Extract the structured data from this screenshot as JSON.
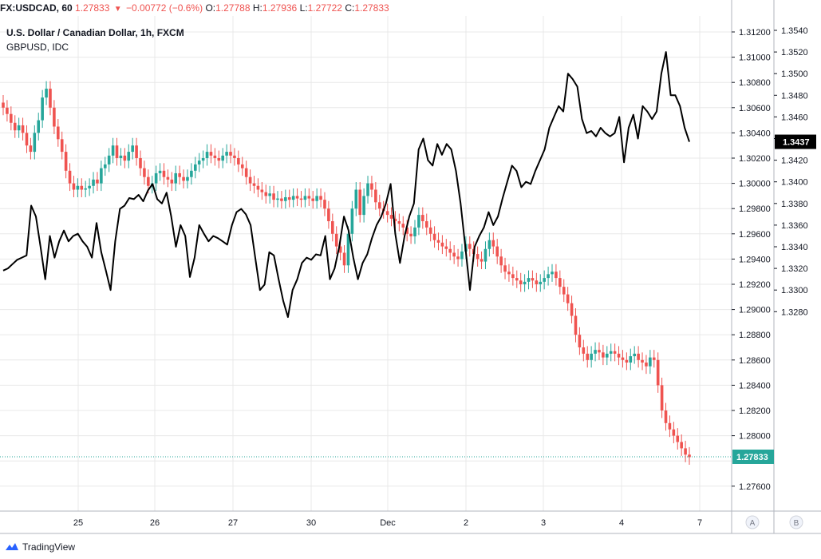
{
  "header": {
    "symbol": "FX:USDCAD, 60",
    "last": "1.27833",
    "change": "−0.00772 (−0.6%)",
    "o_label": "O:",
    "o_val": "1.27788",
    "h_label": "H:",
    "h_val": "1.27936",
    "l_label": "L:",
    "l_val": "1.27722",
    "c_label": "C:",
    "c_val": "1.27833"
  },
  "titles": {
    "main": "U.S. Dollar / Canadian Dollar, 1h, FXCM",
    "overlay": "GBPUSD, IDC"
  },
  "footer": {
    "brand": "TradingView"
  },
  "colors": {
    "up": "#26a69a",
    "down": "#ef5350",
    "line": "#000000",
    "grid": "#e8e8e8"
  },
  "chart_data": {
    "type": "line",
    "x_ticks": [
      "25",
      "26",
      "27",
      "30",
      "Dec",
      "2",
      "3",
      "4",
      "7"
    ],
    "scale_a": {
      "labels": [
        "A"
      ],
      "ticks": [
        1.312,
        1.31,
        1.308,
        1.306,
        1.304,
        1.302,
        1.3,
        1.298,
        1.296,
        1.294,
        1.292,
        1.29,
        1.288,
        1.286,
        1.284,
        1.282,
        1.28,
        1.278,
        1.276
      ],
      "tick_labels": [
        "1.31200",
        "1.31000",
        "1.30800",
        "1.30600",
        "1.30400",
        "1.30200",
        "1.30000",
        "1.29800",
        "1.29600",
        "1.29400",
        "1.29200",
        "1.29000",
        "1.28800",
        "1.28600",
        "1.28400",
        "1.28200",
        "1.28000",
        "",
        "1.27600"
      ],
      "last_price": "1.27833",
      "last_value": 1.27833
    },
    "scale_b": {
      "labels": [
        "B"
      ],
      "ticks": [
        1.354,
        1.352,
        1.35,
        1.348,
        1.346,
        1.344,
        1.342,
        1.34,
        1.338,
        1.336,
        1.334,
        1.332,
        1.33,
        1.328
      ],
      "tick_labels": [
        "1.3540",
        "1.3520",
        "1.3500",
        "1.3480",
        "1.3460",
        "1.3440",
        "1.3420",
        "1.3400",
        "1.3380",
        "1.3360",
        "1.3340",
        "1.3320",
        "1.3300",
        "1.3280"
      ],
      "last_price": "1.3437",
      "last_value": 1.3437
    },
    "series": [
      {
        "kind": "candles",
        "closes": [
          1.306,
          1.3055,
          1.3048,
          1.3042,
          1.3046,
          1.304,
          1.303,
          1.3025,
          1.304,
          1.305,
          1.3068,
          1.3075,
          1.306,
          1.3045,
          1.3035,
          1.3025,
          1.301,
          1.3,
          1.2995,
          1.2998,
          1.2995,
          1.2996,
          1.2998,
          1.3003,
          1.3,
          1.3012,
          1.3015,
          1.3022,
          1.303,
          1.302,
          1.3022,
          1.3018,
          1.3025,
          1.303,
          1.302,
          1.3012,
          1.3005,
          1.2998,
          1.3,
          1.3008,
          1.301,
          1.3005,
          1.3003,
          1.3,
          1.3008,
          1.3005,
          1.3002,
          1.3005,
          1.301,
          1.3015,
          1.3018,
          1.302,
          1.3025,
          1.3022,
          1.302,
          1.3018,
          1.3022,
          1.3025,
          1.3022,
          1.302,
          1.3015,
          1.3012,
          1.3005,
          1.3,
          1.2998,
          1.2995,
          1.2993,
          1.299,
          1.2992,
          1.2987,
          1.2988,
          1.2986,
          1.2989,
          1.2987,
          1.299,
          1.2988,
          1.2987,
          1.299,
          1.2988,
          1.2986,
          1.299,
          1.2987,
          1.298,
          1.297,
          1.296,
          1.295,
          1.2945,
          1.2935,
          1.296,
          1.298,
          1.2995,
          1.2975,
          1.299,
          1.3,
          1.2995,
          1.2985,
          1.298,
          1.2978,
          1.2975,
          1.2972,
          1.297,
          1.2968,
          1.2965,
          1.296,
          1.2958,
          1.2965,
          1.2975,
          1.297,
          1.2965,
          1.296,
          1.2955,
          1.2953,
          1.295,
          1.2948,
          1.2945,
          1.2942,
          1.294,
          1.2946,
          1.2952,
          1.2948,
          1.2944,
          1.294,
          1.2938,
          1.2948,
          1.2955,
          1.295,
          1.2942,
          1.2935,
          1.293,
          1.2928,
          1.2925,
          1.2923,
          1.292,
          1.2922,
          1.2925,
          1.2923,
          1.292,
          1.2922,
          1.2925,
          1.2928,
          1.293,
          1.2925,
          1.2918,
          1.2912,
          1.2905,
          1.2895,
          1.288,
          1.287,
          1.2865,
          1.286,
          1.2865,
          1.2868,
          1.2866,
          1.2862,
          1.2865,
          1.2867,
          1.2865,
          1.2862,
          1.286,
          1.2858,
          1.2863,
          1.2865,
          1.286,
          1.2858,
          1.2855,
          1.2862,
          1.286,
          1.284,
          1.282,
          1.281,
          1.2805,
          1.28,
          1.2795,
          1.279,
          1.2785,
          1.2783
        ]
      },
      {
        "kind": "line",
        "name": "GBPUSD, IDC",
        "values": [
          1.3318,
          1.332,
          1.3324,
          1.3328,
          1.333,
          1.3332,
          1.3378,
          1.3368,
          1.334,
          1.331,
          1.335,
          1.333,
          1.3345,
          1.3355,
          1.3345,
          1.335,
          1.3352,
          1.3345,
          1.334,
          1.333,
          1.3362,
          1.3335,
          1.3318,
          1.33,
          1.3345,
          1.3375,
          1.3378,
          1.3385,
          1.3384,
          1.3388,
          1.3382,
          1.3392,
          1.3398,
          1.3384,
          1.338,
          1.339,
          1.3368,
          1.334,
          1.336,
          1.335,
          1.3312,
          1.333,
          1.336,
          1.3352,
          1.3345,
          1.335,
          1.3348,
          1.3345,
          1.3342,
          1.336,
          1.3372,
          1.3375,
          1.337,
          1.336,
          1.333,
          1.33,
          1.3305,
          1.3335,
          1.3332,
          1.331,
          1.329,
          1.3275,
          1.33,
          1.331,
          1.3325,
          1.333,
          1.3328,
          1.3333,
          1.3332,
          1.335,
          1.331,
          1.332,
          1.334,
          1.3368,
          1.3355,
          1.333,
          1.331,
          1.3325,
          1.3333,
          1.3348,
          1.336,
          1.3368,
          1.338,
          1.3398,
          1.3352,
          1.3325,
          1.335,
          1.3368,
          1.338,
          1.343,
          1.344,
          1.342,
          1.3415,
          1.3435,
          1.3425,
          1.3435,
          1.343,
          1.341,
          1.338,
          1.334,
          1.33,
          1.334,
          1.335,
          1.3358,
          1.3372,
          1.336,
          1.3368,
          1.3385,
          1.34,
          1.3415,
          1.341,
          1.3395,
          1.34,
          1.3398,
          1.341,
          1.342,
          1.343,
          1.345,
          1.346,
          1.347,
          1.3465,
          1.35,
          1.3495,
          1.3488,
          1.3458,
          1.3445,
          1.3447,
          1.3442,
          1.345,
          1.3445,
          1.3442,
          1.3445,
          1.346,
          1.3418,
          1.345,
          1.3462,
          1.344,
          1.347,
          1.3465,
          1.3458,
          1.3465,
          1.35,
          1.352,
          1.348,
          1.348,
          1.347,
          1.345,
          1.3437
        ]
      }
    ]
  }
}
